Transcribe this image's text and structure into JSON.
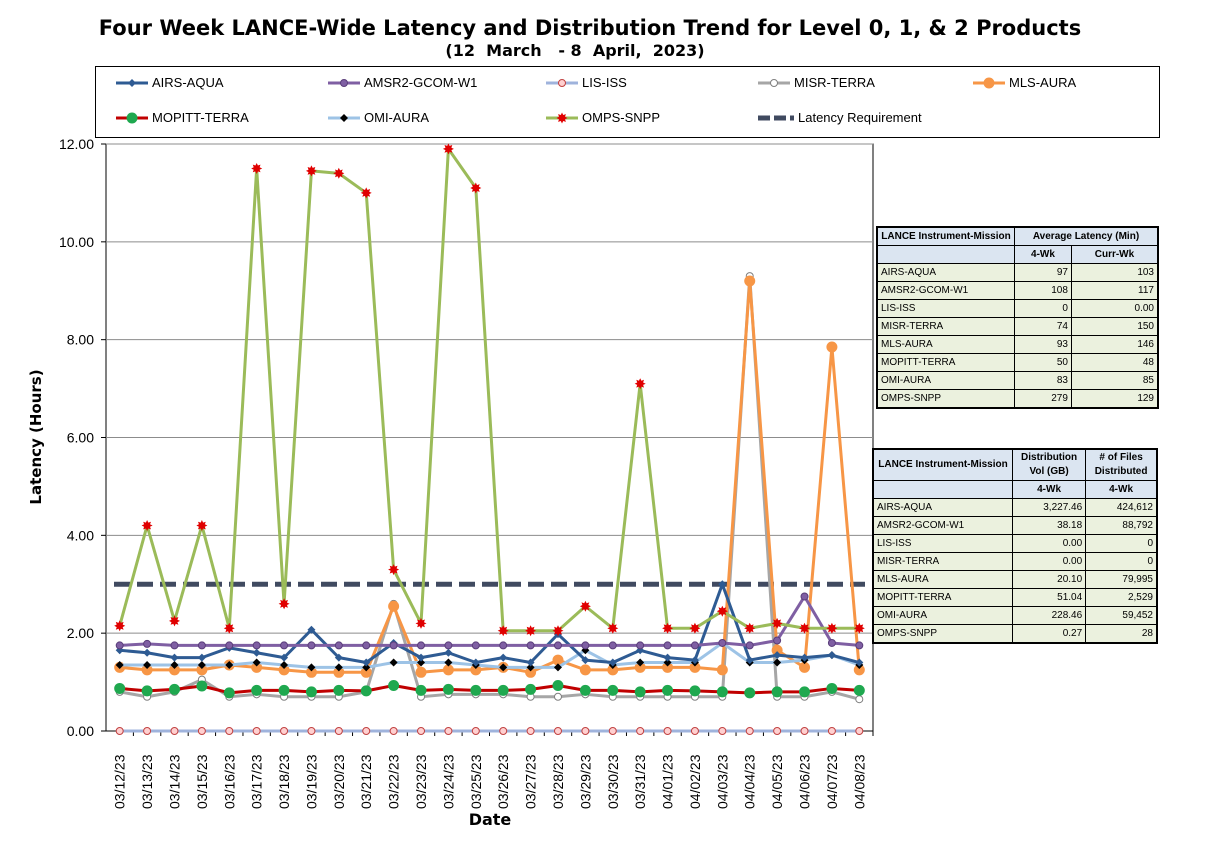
{
  "title": "Four Week LANCE-Wide Latency and Distribution Trend for Level 0, 1, & 2 Products",
  "subtitle": "(12  March   - 8  April,  2023)",
  "chart_data": {
    "type": "line",
    "x": [
      "03/12/23",
      "03/13/23",
      "03/14/23",
      "03/15/23",
      "03/16/23",
      "03/17/23",
      "03/18/23",
      "03/19/23",
      "03/20/23",
      "03/21/23",
      "03/22/23",
      "03/23/23",
      "03/24/23",
      "03/25/23",
      "03/26/23",
      "03/27/23",
      "03/28/23",
      "03/29/23",
      "03/30/23",
      "03/31/23",
      "04/01/23",
      "04/02/23",
      "04/03/23",
      "04/04/23",
      "04/05/23",
      "04/06/23",
      "04/07/23",
      "04/08/23"
    ],
    "xlabel": "Date",
    "ylabel": "Latency (Hours)",
    "ylim": [
      0,
      12
    ],
    "yticks": [
      "0.00",
      "2.00",
      "4.00",
      "6.00",
      "8.00",
      "10.00",
      "12.00"
    ],
    "grid": true,
    "series": [
      {
        "name": "AIRS-AQUA",
        "color": "#4f81bd",
        "line": "#2e5b93",
        "marker": "diamond",
        "values": [
          1.65,
          1.6,
          1.5,
          1.5,
          1.7,
          1.6,
          1.5,
          2.07,
          1.5,
          1.4,
          1.8,
          1.5,
          1.6,
          1.4,
          1.5,
          1.4,
          1.98,
          1.45,
          1.4,
          1.65,
          1.5,
          1.45,
          3.0,
          1.45,
          1.55,
          1.5,
          1.55,
          1.4
        ]
      },
      {
        "name": "AMSR2-GCOM-W1",
        "color": "#7f5fa3",
        "line": "#7f5fa3",
        "marker": "circle",
        "values": [
          1.75,
          1.78,
          1.75,
          1.75,
          1.75,
          1.75,
          1.75,
          1.75,
          1.75,
          1.75,
          1.75,
          1.75,
          1.75,
          1.75,
          1.75,
          1.75,
          1.75,
          1.75,
          1.75,
          1.75,
          1.75,
          1.75,
          1.8,
          1.75,
          1.85,
          2.75,
          1.8,
          1.75
        ]
      },
      {
        "name": "LIS-ISS",
        "color": "#b7c3e0",
        "line": "#9fb3dc",
        "marker": "hollow-circle-red",
        "values": [
          0,
          0,
          0,
          0,
          0,
          0,
          0,
          0,
          0,
          0,
          0,
          0,
          0,
          0,
          0,
          0,
          0,
          0,
          0,
          0,
          0,
          0,
          0,
          0,
          0,
          0,
          0,
          0
        ]
      },
      {
        "name": "MISR-TERRA",
        "color": "#f79646",
        "line": "#a6a6a6",
        "marker": "hollow-circle",
        "values": [
          0.8,
          0.7,
          0.8,
          1.05,
          0.7,
          0.75,
          0.7,
          0.7,
          0.7,
          0.8,
          2.6,
          0.7,
          0.75,
          0.75,
          0.75,
          0.7,
          0.7,
          0.75,
          0.7,
          0.7,
          0.7,
          0.7,
          0.7,
          9.3,
          0.7,
          0.7,
          0.8,
          0.65
        ]
      },
      {
        "name": "MLS-AURA",
        "color": "#f79646",
        "line": "#f79646",
        "marker": "circle-orange",
        "values": [
          1.3,
          1.25,
          1.25,
          1.25,
          1.35,
          1.3,
          1.25,
          1.2,
          1.2,
          1.2,
          2.55,
          1.2,
          1.25,
          1.25,
          1.3,
          1.2,
          1.45,
          1.25,
          1.25,
          1.3,
          1.3,
          1.3,
          1.25,
          9.2,
          1.65,
          1.3,
          7.85,
          1.25
        ]
      },
      {
        "name": "MOPITT-TERRA",
        "color": "#c00000",
        "line": "#c00000",
        "marker": "circle-green",
        "values": [
          0.87,
          0.82,
          0.85,
          0.92,
          0.78,
          0.83,
          0.83,
          0.8,
          0.83,
          0.82,
          0.93,
          0.83,
          0.85,
          0.83,
          0.83,
          0.85,
          0.93,
          0.83,
          0.83,
          0.8,
          0.83,
          0.82,
          0.8,
          0.78,
          0.8,
          0.8,
          0.87,
          0.83
        ]
      },
      {
        "name": "OMI-AURA",
        "color": "#9dc3e6",
        "line": "#9dc3e6",
        "marker": "diamond-black",
        "values": [
          1.35,
          1.35,
          1.35,
          1.35,
          1.35,
          1.4,
          1.35,
          1.3,
          1.3,
          1.3,
          1.4,
          1.4,
          1.4,
          1.35,
          1.3,
          1.3,
          1.3,
          1.65,
          1.35,
          1.4,
          1.4,
          1.4,
          1.8,
          1.4,
          1.4,
          1.45,
          1.55,
          1.35
        ]
      },
      {
        "name": "OMPS-SNPP",
        "color": "#9bbb59",
        "line": "#9bbb59",
        "marker": "star-red",
        "values": [
          2.15,
          4.2,
          2.25,
          4.2,
          2.1,
          11.5,
          2.6,
          11.45,
          11.4,
          11.0,
          3.3,
          2.2,
          11.9,
          11.1,
          2.05,
          2.05,
          2.05,
          2.55,
          2.1,
          7.1,
          2.1,
          2.1,
          2.45,
          2.1,
          2.2,
          2.1,
          2.1,
          2.1
        ]
      }
    ],
    "reference_line": {
      "name": "Latency Requirement",
      "value": 3.0,
      "color": "#404a60"
    }
  },
  "latency_table": {
    "header1": [
      "LANCE Instrument-Mission",
      "Average Latency (Min)"
    ],
    "header2": [
      "4-Wk",
      "Curr-Wk"
    ],
    "rows": [
      [
        "AIRS-AQUA",
        "97",
        "103"
      ],
      [
        "AMSR2-GCOM-W1",
        "108",
        "117"
      ],
      [
        "LIS-ISS",
        "0",
        "0.00"
      ],
      [
        "MISR-TERRA",
        "74",
        "150"
      ],
      [
        "MLS-AURA",
        "93",
        "146"
      ],
      [
        "MOPITT-TERRA",
        "50",
        "48"
      ],
      [
        "OMI-AURA",
        "83",
        "85"
      ],
      [
        "OMPS-SNPP",
        "279",
        "129"
      ]
    ]
  },
  "distribution_table": {
    "header1": [
      "LANCE Instrument-Mission",
      "Distribution Vol (GB)",
      "# of Files Distributed"
    ],
    "header2": [
      "4-Wk",
      "4-Wk"
    ],
    "rows": [
      [
        "AIRS-AQUA",
        "3,227.46",
        "424,612"
      ],
      [
        "AMSR2-GCOM-W1",
        "38.18",
        "88,792"
      ],
      [
        "LIS-ISS",
        "0.00",
        "0"
      ],
      [
        "MISR-TERRA",
        "0.00",
        "0"
      ],
      [
        "MLS-AURA",
        "20.10",
        "79,995"
      ],
      [
        "MOPITT-TERRA",
        "51.04",
        "2,529"
      ],
      [
        "OMI-AURA",
        "228.46",
        "59,452"
      ],
      [
        "OMPS-SNPP",
        "0.27",
        "28"
      ]
    ]
  }
}
